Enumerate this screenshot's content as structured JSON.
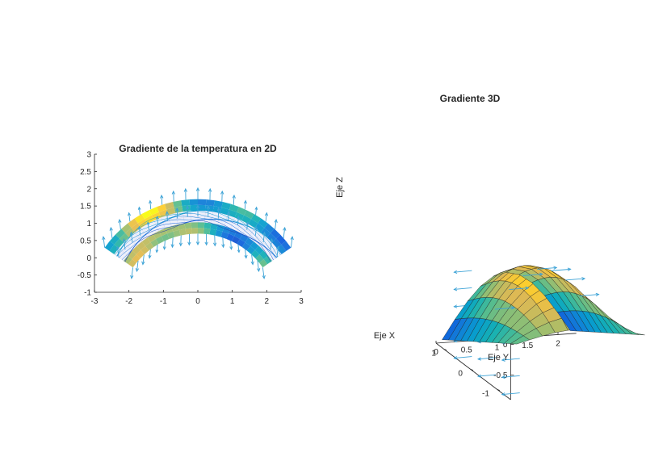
{
  "figure": {
    "background": "#ffffff"
  },
  "chart_data": [
    {
      "type": "quiver",
      "title": "Gradiente de la temperatura en 2D",
      "xlabel": "",
      "ylabel": "",
      "xlim": [
        -3,
        3
      ],
      "ylim": [
        -1,
        3
      ],
      "xticks": [
        -3,
        -2,
        -1,
        0,
        1,
        2,
        3
      ],
      "yticks": [
        -1,
        -0.5,
        0,
        0.5,
        1,
        1.5,
        2,
        2.5,
        3
      ],
      "domain": {
        "shape": "annulus-sector",
        "center": [
          0,
          -1.6
        ],
        "r_inner": 2.3,
        "r_outer": 3.3,
        "angle_range_deg": [
          35,
          145
        ]
      },
      "colormap": "parula",
      "arrow_color": "#3ba2d6",
      "grid": false
    },
    {
      "type": "surface-quiver3d",
      "title": "Gradiente 3D",
      "xlabel": "Eje X",
      "ylabel": "Eje Y",
      "zlabel": "Eje Z",
      "xlim": [
        -1.5,
        1.3
      ],
      "ylim": [
        0,
        2.3
      ],
      "zlim": [
        -0.9,
        0.7
      ],
      "xticks": [
        -1,
        0,
        1
      ],
      "yticks": [
        0,
        0.5,
        1,
        1.5,
        2
      ],
      "zticks": [
        -0.5,
        0,
        0.5
      ],
      "colormap": "parula",
      "arrow_color": "#3ba2d6",
      "grid": false
    }
  ]
}
